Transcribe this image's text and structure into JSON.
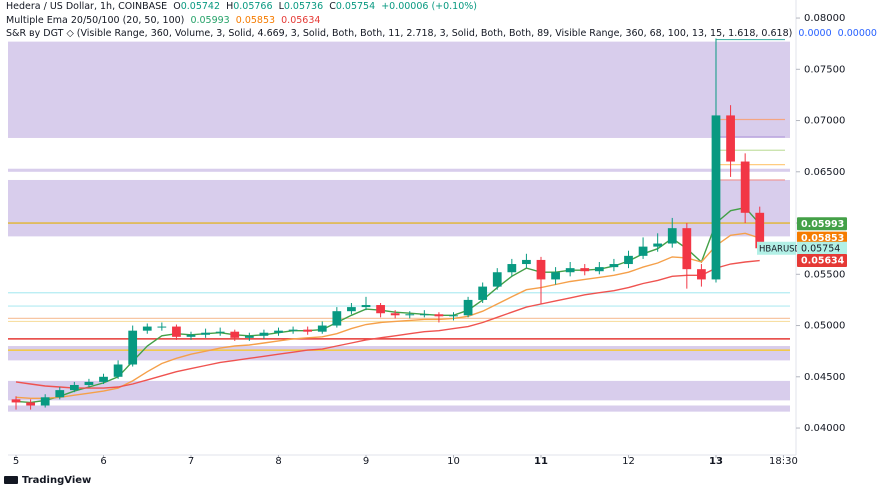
{
  "header": {
    "title": "Hedera / US Dollar, 1h, COINBASE",
    "ohlc": [
      {
        "label": "O",
        "value": "0.05742"
      },
      {
        "label": "H",
        "value": "0.05766"
      },
      {
        "label": "L",
        "value": "0.05736"
      },
      {
        "label": "C",
        "value": "0.05754"
      }
    ],
    "change": "+0.00006 (+0.10%)",
    "ema_title": "Multiple Ema 20/50/100 (20, 50, 100)",
    "sr_title": "S&R ву DGT ◇ (Visible Range, 360, Volume, 3, Solid, 4.669, 3, Solid, Both, Both, 11, 2.718, 3, Solid, Both, Both, 89, Visible Range, 360, 68, 100, 13, 15, 1.618, 0.618)",
    "sr_values": [
      "0.0000",
      "0.00000"
    ]
  },
  "chart_data": {
    "type": "candlestick",
    "symbol": "HBARUSD",
    "up_color": "#089981",
    "down_color": "#f23645",
    "x": [
      0,
      4,
      8,
      12,
      16,
      20,
      24,
      28,
      32,
      36,
      40,
      44,
      48,
      52,
      56,
      60,
      64,
      68,
      72,
      76,
      80,
      84,
      88,
      92,
      96,
      100,
      104,
      108,
      112,
      116,
      120,
      124,
      128,
      132,
      136,
      140,
      144,
      148,
      152,
      156,
      160,
      164,
      168,
      172,
      176,
      180,
      184,
      188,
      192,
      196,
      200,
      204
    ],
    "candles": [
      [
        0.0428,
        0.0431,
        0.0418,
        0.0425
      ],
      [
        0.0425,
        0.0428,
        0.0418,
        0.0422
      ],
      [
        0.0422,
        0.0433,
        0.042,
        0.043
      ],
      [
        0.043,
        0.044,
        0.0428,
        0.0437
      ],
      [
        0.0437,
        0.0445,
        0.0435,
        0.0442
      ],
      [
        0.0442,
        0.0448,
        0.044,
        0.0445
      ],
      [
        0.0445,
        0.0453,
        0.0443,
        0.045
      ],
      [
        0.045,
        0.0466,
        0.0448,
        0.0462
      ],
      [
        0.0462,
        0.05,
        0.046,
        0.0495
      ],
      [
        0.0495,
        0.0502,
        0.0492,
        0.0499
      ],
      [
        0.0499,
        0.0503,
        0.0495,
        0.0499
      ],
      [
        0.0499,
        0.0501,
        0.0486,
        0.0489
      ],
      [
        0.0489,
        0.0494,
        0.0486,
        0.0491
      ],
      [
        0.0491,
        0.0497,
        0.0488,
        0.0493
      ],
      [
        0.0493,
        0.0498,
        0.049,
        0.0494
      ],
      [
        0.0494,
        0.0496,
        0.0485,
        0.0488
      ],
      [
        0.0488,
        0.0493,
        0.0485,
        0.049
      ],
      [
        0.049,
        0.0496,
        0.0487,
        0.0493
      ],
      [
        0.0493,
        0.0498,
        0.049,
        0.0495
      ],
      [
        0.0495,
        0.0499,
        0.0492,
        0.0496
      ],
      [
        0.0496,
        0.0499,
        0.0491,
        0.0494
      ],
      [
        0.0494,
        0.0504,
        0.0492,
        0.05
      ],
      [
        0.05,
        0.0518,
        0.0498,
        0.0514
      ],
      [
        0.0514,
        0.0522,
        0.0511,
        0.0518
      ],
      [
        0.0518,
        0.0528,
        0.0515,
        0.052
      ],
      [
        0.052,
        0.0522,
        0.0508,
        0.0512
      ],
      [
        0.0512,
        0.0515,
        0.0507,
        0.051
      ],
      [
        0.051,
        0.0514,
        0.0507,
        0.0511
      ],
      [
        0.0511,
        0.0515,
        0.0508,
        0.0511
      ],
      [
        0.0511,
        0.0513,
        0.0503,
        0.0509
      ],
      [
        0.0509,
        0.0513,
        0.0505,
        0.051
      ],
      [
        0.051,
        0.0528,
        0.0508,
        0.0525
      ],
      [
        0.0525,
        0.0542,
        0.0522,
        0.0538
      ],
      [
        0.0538,
        0.0556,
        0.0535,
        0.0552
      ],
      [
        0.0552,
        0.0565,
        0.0548,
        0.056
      ],
      [
        0.056,
        0.057,
        0.0556,
        0.0564
      ],
      [
        0.0564,
        0.0567,
        0.0521,
        0.0545
      ],
      [
        0.0545,
        0.0557,
        0.054,
        0.0552
      ],
      [
        0.0552,
        0.0562,
        0.0548,
        0.0556
      ],
      [
        0.0556,
        0.056,
        0.0549,
        0.0553
      ],
      [
        0.0553,
        0.0562,
        0.055,
        0.0557
      ],
      [
        0.0557,
        0.0565,
        0.0553,
        0.056
      ],
      [
        0.056,
        0.0573,
        0.0556,
        0.0568
      ],
      [
        0.0568,
        0.0586,
        0.0565,
        0.0577
      ],
      [
        0.0577,
        0.059,
        0.0572,
        0.058
      ],
      [
        0.058,
        0.0605,
        0.0576,
        0.0595
      ],
      [
        0.0595,
        0.06,
        0.0536,
        0.0555
      ],
      [
        0.0555,
        0.056,
        0.0538,
        0.0545
      ],
      [
        0.0545,
        0.078,
        0.0542,
        0.0705
      ],
      [
        0.0705,
        0.0715,
        0.0645,
        0.066
      ],
      [
        0.066,
        0.0668,
        0.06,
        0.061
      ],
      [
        0.061,
        0.0616,
        0.057,
        0.05754
      ]
    ],
    "series": [
      {
        "color": "#43a047",
        "values": [
          0.0426,
          0.0425,
          0.0427,
          0.0431,
          0.0436,
          0.044,
          0.0444,
          0.045,
          0.0465,
          0.048,
          0.049,
          0.0492,
          0.0491,
          0.0492,
          0.0493,
          0.0491,
          0.049,
          0.0491,
          0.0493,
          0.0495,
          0.0495,
          0.0496,
          0.0503,
          0.051,
          0.0516,
          0.0515,
          0.0513,
          0.0512,
          0.0511,
          0.051,
          0.051,
          0.0515,
          0.0525,
          0.0537,
          0.0548,
          0.0556,
          0.0552,
          0.0552,
          0.0554,
          0.0554,
          0.0555,
          0.0558,
          0.0563,
          0.057,
          0.0575,
          0.0585,
          0.0575,
          0.0562,
          0.06,
          0.0612,
          0.0615,
          0.05993
        ]
      },
      {
        "color": "#f5a04a",
        "values": [
          0.043,
          0.0429,
          0.0429,
          0.043,
          0.0432,
          0.0434,
          0.0436,
          0.0439,
          0.0446,
          0.0455,
          0.0463,
          0.0468,
          0.0472,
          0.0475,
          0.0478,
          0.048,
          0.0481,
          0.0483,
          0.0485,
          0.0487,
          0.0488,
          0.0489,
          0.0492,
          0.0497,
          0.0501,
          0.0503,
          0.0504,
          0.0505,
          0.0506,
          0.0506,
          0.0507,
          0.0509,
          0.0514,
          0.0521,
          0.0528,
          0.0535,
          0.0537,
          0.054,
          0.0543,
          0.0545,
          0.0547,
          0.0549,
          0.0552,
          0.0557,
          0.0561,
          0.0567,
          0.0566,
          0.0562,
          0.0578,
          0.0588,
          0.059,
          0.05853
        ]
      },
      {
        "color": "#ef5350",
        "values": [
          0.0445,
          0.0443,
          0.0441,
          0.044,
          0.0439,
          0.0439,
          0.0439,
          0.044,
          0.0443,
          0.0447,
          0.0451,
          0.0455,
          0.0458,
          0.0461,
          0.0464,
          0.0466,
          0.0468,
          0.047,
          0.0472,
          0.0474,
          0.0476,
          0.0477,
          0.048,
          0.0483,
          0.0486,
          0.0488,
          0.049,
          0.0492,
          0.0494,
          0.0495,
          0.0497,
          0.0499,
          0.0503,
          0.0508,
          0.0513,
          0.0518,
          0.0521,
          0.0524,
          0.0527,
          0.053,
          0.0532,
          0.0534,
          0.0537,
          0.0541,
          0.0544,
          0.0548,
          0.0549,
          0.0549,
          0.0556,
          0.056,
          0.0562,
          0.05634
        ]
      }
    ],
    "zones": [
      [
        0.0683,
        0.0777
      ],
      [
        0.065,
        0.0653
      ],
      [
        0.0587,
        0.0642
      ],
      [
        0.0466,
        0.048
      ],
      [
        0.0427,
        0.0446
      ],
      [
        0.0416,
        0.0422
      ]
    ],
    "zone_color": "#d1c4e9",
    "levels": [
      {
        "value": 0.0487,
        "color": "#e53935"
      },
      {
        "value": 0.0476,
        "color": "#f2c94c"
      },
      {
        "value": 0.06,
        "color": "#e0b84a"
      },
      {
        "value": 0.0507,
        "color": "#f7c6a3"
      },
      {
        "value": 0.0504,
        "color": "#f7dfa3"
      },
      {
        "value": 0.0532,
        "color": "#b2ebf2"
      },
      {
        "value": 0.0519,
        "color": "#b2ebf2"
      }
    ],
    "right_levels": [
      {
        "value": 0.0701,
        "color": "#f4a582"
      },
      {
        "value": 0.0684,
        "color": "#b39ddb"
      },
      {
        "value": 0.0671,
        "color": "#c5e1a5"
      },
      {
        "value": 0.0657,
        "color": "#ffcc80"
      },
      {
        "value": 0.0642,
        "color": "#ef9a9a"
      },
      {
        "value": 0.0779,
        "color": "#4db6ac"
      }
    ],
    "xlim": [
      -2.2,
      212.3
    ],
    "ylim": [
      0.03737,
      0.08176
    ],
    "xticks": [
      {
        "value": 0,
        "label": "5"
      },
      {
        "value": 24,
        "label": "6"
      },
      {
        "value": 48,
        "label": "7"
      },
      {
        "value": 72,
        "label": "8"
      },
      {
        "value": 96,
        "label": "9"
      },
      {
        "value": 120,
        "label": "10"
      },
      {
        "value": 144,
        "label": "11"
      },
      {
        "value": 168,
        "label": "12"
      },
      {
        "value": 192,
        "label": "13"
      },
      {
        "value": 210.5,
        "label": "18:30"
      }
    ],
    "yticks": [
      {
        "value": 0.04,
        "label": "0.04000"
      },
      {
        "value": 0.045,
        "label": "0.04500"
      },
      {
        "value": 0.05,
        "label": "0.05000"
      },
      {
        "value": 0.055,
        "label": "0.05500"
      },
      {
        "value": 0.06,
        "label": "0.06000"
      },
      {
        "value": 0.065,
        "label": "0.06500"
      },
      {
        "value": 0.07,
        "label": "0.07000"
      },
      {
        "value": 0.075,
        "label": "0.07500"
      },
      {
        "value": 0.08,
        "label": "0.08000"
      }
    ]
  },
  "footer": {
    "brand": "TradingView"
  }
}
